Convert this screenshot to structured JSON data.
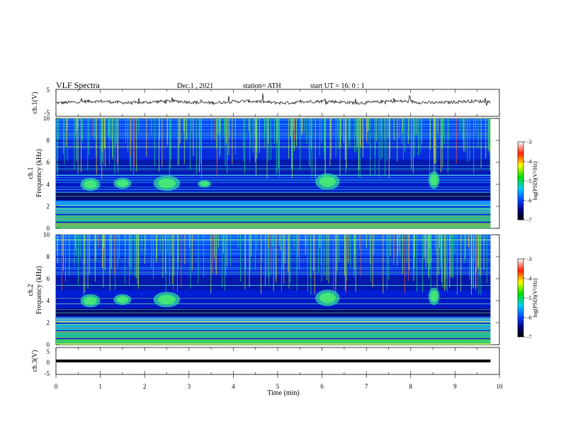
{
  "header": {
    "title": "VLF  Spectra",
    "date": "Dec.1  , 2021",
    "station": "station= ATH",
    "start_ut": "start  UT  =    16: 0   : 1"
  },
  "chart_data": [
    {
      "type": "line",
      "panel": "ch1-waveform",
      "ylabel": "ch.1(V)",
      "ylim": [
        -5,
        5
      ],
      "yticks": [
        "5",
        "-5"
      ],
      "xlim": [
        0,
        10
      ],
      "x_extent": [
        0,
        9.8
      ],
      "mean_value": 0.3,
      "color": "#000000"
    },
    {
      "type": "heatmap",
      "panel": "ch1-spectrogram",
      "ylabel": "ch.1\nFrequency  (kHz)",
      "ylim": [
        0,
        10
      ],
      "yticks": [
        "0",
        "2",
        "4",
        "6",
        "8",
        "10"
      ],
      "xlim": [
        0,
        10
      ],
      "x_extent": [
        0,
        9.8
      ],
      "colorbar": {
        "label": "log(PSD)(V²/Hz)",
        "range": [
          -7,
          -3
        ],
        "ticks": [
          "-3",
          "-4",
          "-5",
          "-6",
          "-7"
        ]
      },
      "emission_bursts": [
        {
          "t_start": 0.55,
          "t_end": 1.0,
          "f_low": 3.4,
          "f_high": 4.6
        },
        {
          "t_start": 1.3,
          "t_end": 1.7,
          "f_low": 3.6,
          "f_high": 4.6
        },
        {
          "t_start": 2.2,
          "t_end": 2.8,
          "f_low": 3.4,
          "f_high": 4.8
        },
        {
          "t_start": 3.2,
          "t_end": 3.5,
          "f_low": 3.7,
          "f_high": 4.4
        },
        {
          "t_start": 5.85,
          "t_end": 6.4,
          "f_low": 3.5,
          "f_high": 5.0
        },
        {
          "t_start": 8.4,
          "t_end": 8.65,
          "f_low": 3.6,
          "f_high": 5.2
        }
      ]
    },
    {
      "type": "heatmap",
      "panel": "ch2-spectrogram",
      "ylabel": "ch.2\nFrequency  (kHz)",
      "ylim": [
        0,
        10
      ],
      "yticks": [
        "0",
        "2",
        "4",
        "6",
        "8",
        "10"
      ],
      "xlim": [
        0,
        10
      ],
      "x_extent": [
        0,
        9.8
      ],
      "colorbar": {
        "label": "log(PSD)(V²/Hz)",
        "range": [
          -7,
          -3
        ],
        "ticks": [
          "-3",
          "-4",
          "-5",
          "-6",
          "-7"
        ]
      },
      "emission_bursts": [
        {
          "t_start": 0.55,
          "t_end": 1.0,
          "f_low": 3.4,
          "f_high": 4.6
        },
        {
          "t_start": 1.3,
          "t_end": 1.7,
          "f_low": 3.6,
          "f_high": 4.6
        },
        {
          "t_start": 2.2,
          "t_end": 2.8,
          "f_low": 3.4,
          "f_high": 4.8
        },
        {
          "t_start": 5.85,
          "t_end": 6.4,
          "f_low": 3.5,
          "f_high": 5.0
        },
        {
          "t_start": 8.4,
          "t_end": 8.65,
          "f_low": 3.6,
          "f_high": 5.2
        }
      ]
    },
    {
      "type": "line",
      "panel": "ch3-waveform",
      "ylabel": "ch.3(V)",
      "ylim": [
        -5,
        5
      ],
      "yticks": [
        "5",
        "0",
        "-5"
      ],
      "xlim": [
        0,
        10
      ],
      "x_extent": [
        0,
        9.8
      ],
      "mean_value": 0,
      "color": "#000000"
    }
  ],
  "xaxis": {
    "label": "Time  (min)",
    "ticks": [
      "0",
      "1",
      "2",
      "3",
      "4",
      "5",
      "6",
      "7",
      "8",
      "9",
      "10"
    ]
  }
}
